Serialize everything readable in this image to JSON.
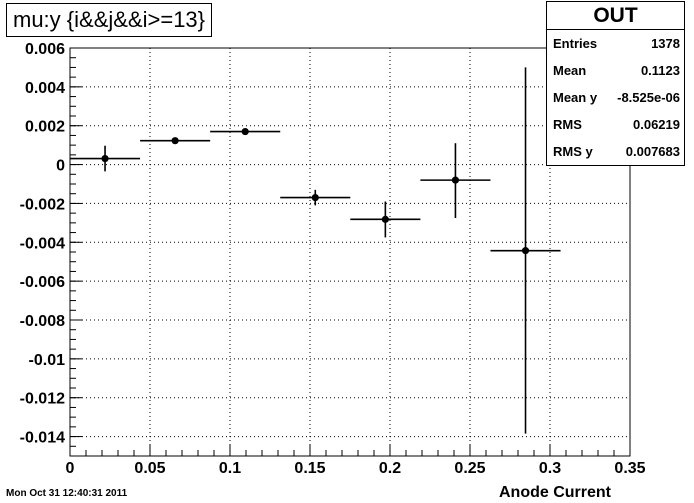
{
  "title": "mu:y {i&&j&&i>=13}",
  "stats": {
    "title": "OUT",
    "rows": [
      {
        "label": "Entries",
        "value": "1378"
      },
      {
        "label": "Mean",
        "value": "0.1123"
      },
      {
        "label": "Mean y",
        "value": "-8.525e-06"
      },
      {
        "label": "RMS",
        "value": "0.06219"
      },
      {
        "label": "RMS y",
        "value": "0.007683"
      }
    ]
  },
  "footer": {
    "date": "Mon Oct 31 12:40:31 2011"
  },
  "chart_data": {
    "type": "scatter",
    "title": "mu:y {i&&j&&i>=13}",
    "xlabel": "Anode Current",
    "ylabel": "",
    "xlim": [
      0,
      0.35
    ],
    "ylim": [
      -0.015,
      0.006
    ],
    "grid": true,
    "xticks": [
      0,
      0.05,
      0.1,
      0.15,
      0.2,
      0.25,
      0.3,
      0.35
    ],
    "xtick_labels": [
      "0",
      "0.05",
      "0.1",
      "0.15",
      "0.2",
      "0.25",
      "0.3",
      "0.35"
    ],
    "yticks": [
      0.006,
      0.004,
      0.002,
      0,
      -0.002,
      -0.004,
      -0.006,
      -0.008,
      -0.01,
      -0.012,
      -0.014
    ],
    "ytick_labels": [
      "0.006",
      "0.004",
      "0.002",
      "0",
      "-0.002",
      "-0.004",
      "-0.006",
      "-0.008",
      "-0.01",
      "-0.012",
      "-0.014"
    ],
    "points": [
      {
        "x": 0.0219,
        "x_lo": 0.0,
        "x_hi": 0.0438,
        "y": 0.00031,
        "y_lo": -0.00035,
        "y_hi": 0.00097
      },
      {
        "x": 0.0657,
        "x_lo": 0.0438,
        "x_hi": 0.0876,
        "y": 0.00123,
        "y_lo": 0.00108,
        "y_hi": 0.00138
      },
      {
        "x": 0.1095,
        "x_lo": 0.0876,
        "x_hi": 0.1314,
        "y": 0.0017,
        "y_lo": 0.00155,
        "y_hi": 0.00185
      },
      {
        "x": 0.1533,
        "x_lo": 0.1314,
        "x_hi": 0.1752,
        "y": -0.0017,
        "y_lo": -0.0021,
        "y_hi": -0.0013
      },
      {
        "x": 0.1971,
        "x_lo": 0.1752,
        "x_hi": 0.219,
        "y": -0.00282,
        "y_lo": -0.00375,
        "y_hi": -0.0019
      },
      {
        "x": 0.2409,
        "x_lo": 0.219,
        "x_hi": 0.2628,
        "y": -0.0008,
        "y_lo": -0.00275,
        "y_hi": 0.0011
      },
      {
        "x": 0.2847,
        "x_lo": 0.2628,
        "x_hi": 0.3066,
        "y": -0.00443,
        "y_lo": -0.01385,
        "y_hi": 0.005
      }
    ]
  }
}
